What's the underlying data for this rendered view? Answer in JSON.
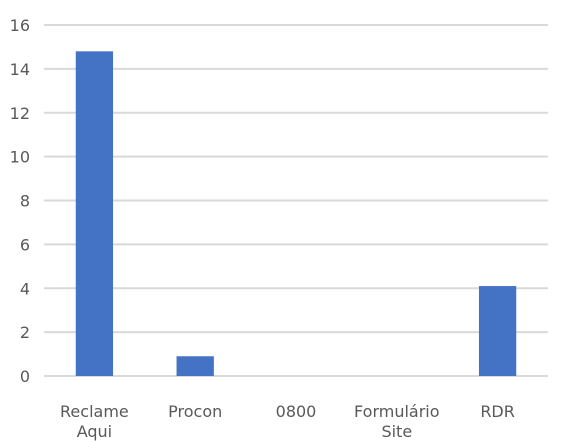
{
  "chart_data": {
    "type": "bar",
    "categories": [
      [
        "Reclame",
        "Aqui"
      ],
      [
        "Procon"
      ],
      [
        "0800"
      ],
      [
        "Formulário",
        "Site"
      ],
      [
        "RDR"
      ]
    ],
    "values": [
      14.8,
      0.9,
      0,
      0,
      4.1
    ],
    "title": "",
    "xlabel": "",
    "ylabel": "",
    "ylim": [
      0,
      16
    ],
    "yticks": [
      0,
      2,
      4,
      6,
      8,
      10,
      12,
      14,
      16
    ],
    "grid": true,
    "legend": false,
    "colors": {
      "bar": "#4472c4",
      "grid": "#d9d9d9",
      "text": "#595959"
    }
  }
}
